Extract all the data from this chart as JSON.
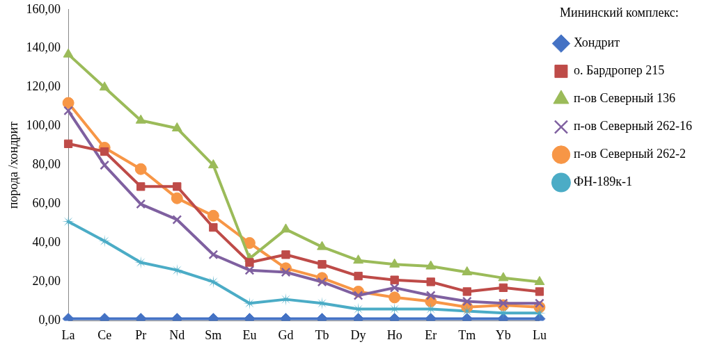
{
  "chart_data": {
    "type": "line",
    "ylabel": "порода /хондрит",
    "legend": "right",
    "legend_title": "Мининский комплекс:",
    "grid": false,
    "categories": [
      "La",
      "Ce",
      "Pr",
      "Nd",
      "Sm",
      "Eu",
      "Gd",
      "Tb",
      "Dy",
      "Ho",
      "Er",
      "Tm",
      "Yb",
      "Lu"
    ],
    "ylim": [
      0,
      160
    ],
    "yticks": [
      {
        "value": 0,
        "label": "0,00"
      },
      {
        "value": 20,
        "label": "20,00"
      },
      {
        "value": 40,
        "label": "40,00"
      },
      {
        "value": 60,
        "label": "60,00"
      },
      {
        "value": 80,
        "label": "80,00"
      },
      {
        "value": 100,
        "label": "100,00"
      },
      {
        "value": 120,
        "label": "120,00"
      },
      {
        "value": 140,
        "label": "140,00"
      },
      {
        "value": 160,
        "label": "160,00"
      }
    ],
    "series": [
      {
        "name": "Хондрит",
        "color": "#4472c4",
        "marker": "diamond",
        "values": [
          1,
          1,
          1,
          1,
          1,
          1,
          1,
          1,
          1,
          1,
          1,
          1,
          1,
          1
        ]
      },
      {
        "name": "о. Бардропер 215",
        "color": "#be4b48",
        "marker": "square",
        "values": [
          91,
          87,
          69,
          69,
          48,
          30,
          34,
          29,
          23,
          21,
          20,
          15,
          17,
          15
        ]
      },
      {
        "name": "п-ов Северный 136",
        "color": "#9bbb59",
        "marker": "triangle",
        "values": [
          137,
          120,
          103,
          99,
          80,
          32,
          47,
          38,
          31,
          29,
          28,
          25,
          22,
          20
        ]
      },
      {
        "name": "п-ов Северный 262-16",
        "color": "#7f60a0",
        "marker": "cross",
        "values": [
          108,
          80,
          60,
          52,
          34,
          26,
          25,
          20,
          13,
          17,
          13,
          10,
          9,
          9
        ]
      },
      {
        "name": "п-ов Северный 262-2",
        "color": "#f79646",
        "marker": "circle",
        "values": [
          112,
          89,
          78,
          63,
          54,
          40,
          27,
          22,
          15,
          12,
          10,
          7,
          8,
          7
        ]
      },
      {
        "name": "ФН-189к-1",
        "color": "#4bacc6",
        "marker": "star",
        "values": [
          51,
          41,
          30,
          26,
          20,
          9,
          11,
          9,
          6,
          6,
          6,
          5,
          4,
          4
        ]
      }
    ]
  }
}
